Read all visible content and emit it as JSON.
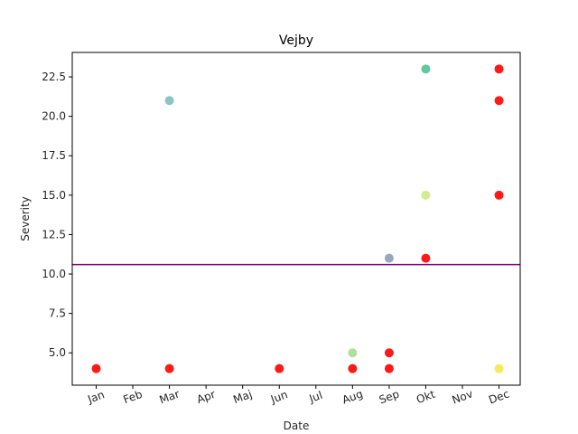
{
  "chart_data": {
    "type": "scatter",
    "title": "Vejby",
    "xlabel": "Date",
    "ylabel": "Severity",
    "x_categories": [
      "Jan",
      "Feb",
      "Mar",
      "Apr",
      "Maj",
      "Jun",
      "Jul",
      "Aug",
      "Sep",
      "Okt",
      "Nov",
      "Dec"
    ],
    "y_ticks": [
      5.0,
      7.5,
      10.0,
      12.5,
      15.0,
      17.5,
      20.0,
      22.5
    ],
    "y_tick_labels": [
      "5.0",
      "7.5",
      "10.0",
      "12.5",
      "15.0",
      "17.5",
      "20.0",
      "22.5"
    ],
    "ylim": [
      2.95,
      24.05
    ],
    "grid": false,
    "legend": "none",
    "threshold_line": {
      "y": 10.6,
      "color": "#800080"
    },
    "points": [
      {
        "month": "Jan",
        "y": 4,
        "color": "#ff0000"
      },
      {
        "month": "Mar",
        "y": 21,
        "color": "#7fbfbf"
      },
      {
        "month": "Mar",
        "y": 4,
        "color": "#ff0000"
      },
      {
        "month": "Jun",
        "y": 4,
        "color": "#ff0000"
      },
      {
        "month": "Aug",
        "y": 5,
        "color": "#a6dc92"
      },
      {
        "month": "Aug",
        "y": 4,
        "color": "#ff0000"
      },
      {
        "month": "Sep",
        "y": 11,
        "color": "#8f9cb8"
      },
      {
        "month": "Sep",
        "y": 5,
        "color": "#ff0000"
      },
      {
        "month": "Sep",
        "y": 4,
        "color": "#ff0000"
      },
      {
        "month": "Okt",
        "y": 23,
        "color": "#52c195"
      },
      {
        "month": "Okt",
        "y": 15,
        "color": "#cfe985"
      },
      {
        "month": "Okt",
        "y": 11,
        "color": "#ff0000"
      },
      {
        "month": "Dec",
        "y": 23,
        "color": "#ff0000"
      },
      {
        "month": "Dec",
        "y": 21,
        "color": "#ff0000"
      },
      {
        "month": "Dec",
        "y": 15,
        "color": "#ff0000"
      },
      {
        "month": "Dec",
        "y": 4,
        "color": "#f5e84a"
      }
    ]
  }
}
